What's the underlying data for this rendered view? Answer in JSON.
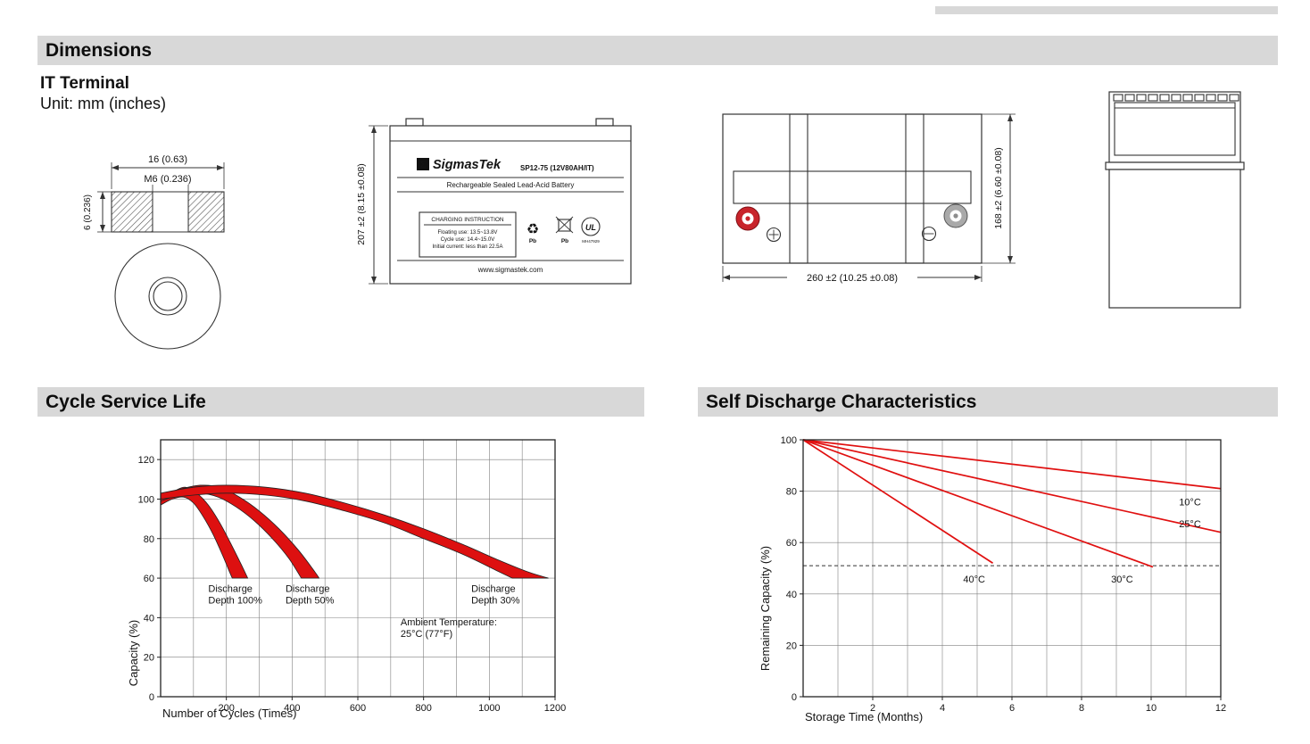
{
  "colors": {
    "header_bg": "#d8d8d8",
    "accent_red": "#c8242b",
    "chart_red": "#dd1010",
    "grid": "#808080"
  },
  "headers": {
    "dimensions": "Dimensions",
    "cycle_service_life": "Cycle Service Life",
    "self_discharge": "Self Discharge Characteristics"
  },
  "terminal_info": {
    "title": "IT Terminal",
    "unit": "Unit: mm (inches)"
  },
  "drawings": {
    "terminal": {
      "width_dim": "16 (0.63)",
      "thread_dim": "M6 (0.236)",
      "height_dim": "6 (0.236)"
    },
    "side_view": {
      "brand": "SigmasTek",
      "brand_initial": "Σ",
      "model": "SP12-75 (12V80AH/IT)",
      "battery_type": "Rechargeable Sealed Lead-Acid Battery",
      "charging_title": "CHARGING INSTRUCTION",
      "charging_lines": [
        "Floating use: 13.5~13.8V",
        "Cycle use: 14.4~15.0V",
        "Initial current: less than 22.5A"
      ],
      "website": "www.sigmastek.com",
      "height_dim": "207 ±2 (8.15 ±0.08)",
      "pb_label": "Pb",
      "recycle_symbol": "♻",
      "ul_label": "UL",
      "ul_code": "MH47929"
    },
    "top_view": {
      "width_dim": "260 ±2 (10.25 ±0.08)",
      "depth_dim": "168 ±2 (6.60 ±0.08)"
    }
  },
  "chart_data": [
    {
      "id": "cycle_service_life",
      "type": "area",
      "title": "Cycle Service Life",
      "xlabel": "Number of Cycles (Times)",
      "ylabel": "Capacity (%)",
      "xlim": [
        0,
        1200
      ],
      "ylim": [
        0,
        130
      ],
      "x_grid_step": 100,
      "y_grid_step": 20,
      "x_ticks": [
        200,
        400,
        600,
        800,
        1000,
        1200
      ],
      "y_ticks": [
        0,
        20,
        40,
        60,
        80,
        100,
        120
      ],
      "color": "#dd1010",
      "bands": [
        {
          "name": "Discharge Depth 100%",
          "upper": [
            [
              0,
              101
            ],
            [
              40,
              104
            ],
            [
              75,
              106
            ],
            [
              110,
              103
            ],
            [
              145,
              97
            ],
            [
              180,
              88
            ],
            [
              215,
              77
            ],
            [
              245,
              67
            ],
            [
              265,
              60
            ]
          ],
          "lower": [
            [
              0,
              97
            ],
            [
              35,
              100
            ],
            [
              70,
              101
            ],
            [
              100,
              98
            ],
            [
              130,
              91
            ],
            [
              160,
              82
            ],
            [
              190,
              71
            ],
            [
              210,
              63
            ],
            [
              218,
              60
            ]
          ]
        },
        {
          "name": "Discharge Depth 50%",
          "upper": [
            [
              0,
              102
            ],
            [
              60,
              105
            ],
            [
              120,
              107
            ],
            [
              180,
              106
            ],
            [
              240,
              101
            ],
            [
              300,
              94
            ],
            [
              360,
              85
            ],
            [
              420,
              74
            ],
            [
              470,
              63
            ],
            [
              482,
              60
            ]
          ],
          "lower": [
            [
              0,
              99
            ],
            [
              60,
              102
            ],
            [
              120,
              103
            ],
            [
              175,
              101
            ],
            [
              230,
              96
            ],
            [
              285,
              89
            ],
            [
              340,
              80
            ],
            [
              390,
              70
            ],
            [
              428,
              60
            ]
          ]
        },
        {
          "name": "Discharge Depth 30%",
          "upper": [
            [
              0,
              103
            ],
            [
              100,
              106
            ],
            [
              200,
              107
            ],
            [
              320,
              106
            ],
            [
              440,
              103
            ],
            [
              560,
              98
            ],
            [
              680,
              92
            ],
            [
              800,
              85
            ],
            [
              920,
              77
            ],
            [
              1030,
              69
            ],
            [
              1120,
              63
            ],
            [
              1180,
              60
            ]
          ],
          "lower": [
            [
              0,
              100
            ],
            [
              100,
              102
            ],
            [
              200,
              103
            ],
            [
              320,
              102
            ],
            [
              440,
              99
            ],
            [
              560,
              94
            ],
            [
              680,
              88
            ],
            [
              800,
              80
            ],
            [
              920,
              72
            ],
            [
              1020,
              64
            ],
            [
              1070,
              60
            ]
          ]
        }
      ],
      "annotations": [
        {
          "lines": [
            "Discharge",
            "Depth 100%"
          ],
          "x": 145,
          "y": 53
        },
        {
          "lines": [
            "Discharge",
            "Depth 50%"
          ],
          "x": 380,
          "y": 53
        },
        {
          "lines": [
            "Discharge",
            "Depth 30%"
          ],
          "x": 945,
          "y": 53
        },
        {
          "lines": [
            "Ambient Temperature:",
            "25°C (77°F)"
          ],
          "x": 730,
          "y": 36
        }
      ]
    },
    {
      "id": "self_discharge",
      "type": "line",
      "title": "Self Discharge Characteristics",
      "xlabel": "Storage Time (Months)",
      "ylabel": "Remaining Capacity (%)",
      "xlim": [
        0,
        12
      ],
      "ylim": [
        0,
        100
      ],
      "x_grid_step": 1,
      "y_grid_step": 20,
      "x_ticks": [
        2,
        4,
        6,
        8,
        10,
        12
      ],
      "y_ticks": [
        0,
        20,
        40,
        60,
        80,
        100
      ],
      "color": "#e01010",
      "series": [
        {
          "name": "40°C",
          "points": [
            [
              0,
              100
            ],
            [
              5.45,
              52
            ]
          ],
          "label_x": 4.6,
          "label_y": 44.5
        },
        {
          "name": "30°C",
          "points": [
            [
              0,
              100
            ],
            [
              10.05,
              50.5
            ]
          ],
          "label_x": 8.85,
          "label_y": 44.5
        },
        {
          "name": "25°C",
          "points": [
            [
              0,
              100
            ],
            [
              12,
              64
            ]
          ],
          "label_x": 10.8,
          "label_y": 66
        },
        {
          "name": "10°C",
          "points": [
            [
              0,
              100
            ],
            [
              12,
              81
            ]
          ],
          "label_x": 10.8,
          "label_y": 74.5
        }
      ],
      "reference_line": {
        "y": 51,
        "style": "dashed"
      }
    }
  ]
}
